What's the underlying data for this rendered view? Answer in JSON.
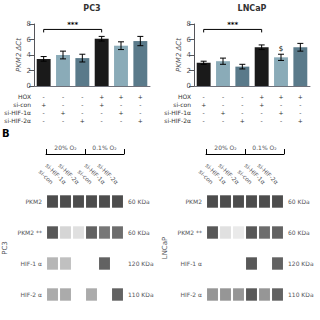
{
  "chart_data": [
    {
      "type": "bar",
      "title": "PC3",
      "y_label": "PKM2 ΔCt",
      "values": [
        3.5,
        4.0,
        3.6,
        6.1,
        5.2,
        5.8
      ],
      "errors": [
        0.3,
        0.5,
        0.5,
        0.3,
        0.5,
        0.6
      ],
      "colors": [
        "#1a1a1a",
        "#8aabb8",
        "#5a7a8a",
        "#1a1a1a",
        "#8aabb8",
        "#5a7a8a"
      ],
      "ylim": [
        0,
        8
      ],
      "yticks": [
        0,
        2,
        4,
        6,
        8
      ],
      "grid": false,
      "tick_labels": "y",
      "annotations": [
        {
          "text": "***",
          "x": [
            0,
            3
          ],
          "y": 7.3
        }
      ],
      "table": [
        {
          "label": "HOX",
          "values": [
            "-",
            "-",
            "-",
            "+",
            "+",
            "+"
          ]
        },
        {
          "label": "si-con",
          "values": [
            "+",
            "-",
            "-",
            "+",
            "-",
            "-"
          ]
        },
        {
          "label": "si-HIF-1α",
          "values": [
            "-",
            "+",
            "-",
            "-",
            "+",
            "-"
          ]
        },
        {
          "label": "si-HIF-2α",
          "values": [
            "-",
            "-",
            "+",
            "-",
            "-",
            "+"
          ]
        }
      ]
    },
    {
      "type": "bar",
      "title": "LNCaP",
      "y_label": "PKM2 ΔCt",
      "values": [
        3.0,
        3.2,
        2.5,
        5.0,
        3.7,
        5.0
      ],
      "errors": [
        0.2,
        0.4,
        0.3,
        0.3,
        0.4,
        0.5
      ],
      "colors": [
        "#1a1a1a",
        "#8aabb8",
        "#5a7a8a",
        "#1a1a1a",
        "#8aabb8",
        "#5a7a8a"
      ],
      "ylim": [
        0,
        8
      ],
      "yticks": [
        0,
        2,
        4,
        6,
        8
      ],
      "grid": false,
      "tick_labels": "y",
      "annotations": [
        {
          "text": "***",
          "x": [
            0,
            3
          ],
          "y": 7.3
        },
        {
          "text": "$",
          "x": 4,
          "y": 4.3
        }
      ],
      "table": [
        {
          "label": "HOX",
          "values": [
            "-",
            "-",
            "-",
            "+",
            "+",
            "+"
          ]
        },
        {
          "label": "si-con",
          "values": [
            "+",
            "-",
            "-",
            "+",
            "-",
            "-"
          ]
        },
        {
          "label": "si-HIF-1α",
          "values": [
            "-",
            "+",
            "-",
            "-",
            "+",
            "-"
          ]
        },
        {
          "label": "si-HIF-2α",
          "values": [
            "-",
            "-",
            "+",
            "-",
            "-",
            "+"
          ]
        }
      ]
    },
    {
      "type": "heatmap",
      "panel_label": "B",
      "title": "PC3",
      "groups": [
        "20% O₂",
        "0.1% O₂"
      ],
      "categories": [
        "si-con",
        "si-HIF-1α",
        "si-HIF-2α",
        "si-con",
        "si-HIF-1α",
        "si-HIF-2α"
      ],
      "rows": [
        "PKM2",
        "PKM2 **",
        "HIF-1 α",
        "HIF-2 α"
      ],
      "row_units": [
        "60 KDa",
        "60 KDa",
        "120 KDa",
        "110 KDa"
      ],
      "cells": [
        [
          0.85,
          0.85,
          0.85,
          0.85,
          0.85,
          0.85
        ],
        [
          0.8,
          0.2,
          0.15,
          0.75,
          0.65,
          0.7
        ],
        [
          0.35,
          0.3,
          0.0,
          0.0,
          0.75,
          0.0
        ],
        [
          0.4,
          0.4,
          0.0,
          0.4,
          0.0,
          0.75
        ]
      ]
    },
    {
      "type": "heatmap",
      "title": "LNCaP",
      "groups": [
        "20% O₂",
        "0.1% O₂"
      ],
      "categories": [
        "si-con",
        "si-HIF-1α",
        "si-HIF-2α",
        "si-con",
        "si-HIF-1α",
        "si-HIF-2α"
      ],
      "rows": [
        "PKM2",
        "PKM2 **",
        "HIF-1 α",
        "HIF-2 α"
      ],
      "row_units": [
        "60 KDa",
        "60 KDa",
        "120 KDa",
        "110 KDa"
      ],
      "cells": [
        [
          0.85,
          0.85,
          0.85,
          0.85,
          0.85,
          0.85
        ],
        [
          0.8,
          0.15,
          0.1,
          0.8,
          0.7,
          0.75
        ],
        [
          0.0,
          0.0,
          0.0,
          0.8,
          0.0,
          0.75
        ],
        [
          0.5,
          0.5,
          0.5,
          0.8,
          0.5,
          0.75
        ]
      ]
    }
  ]
}
